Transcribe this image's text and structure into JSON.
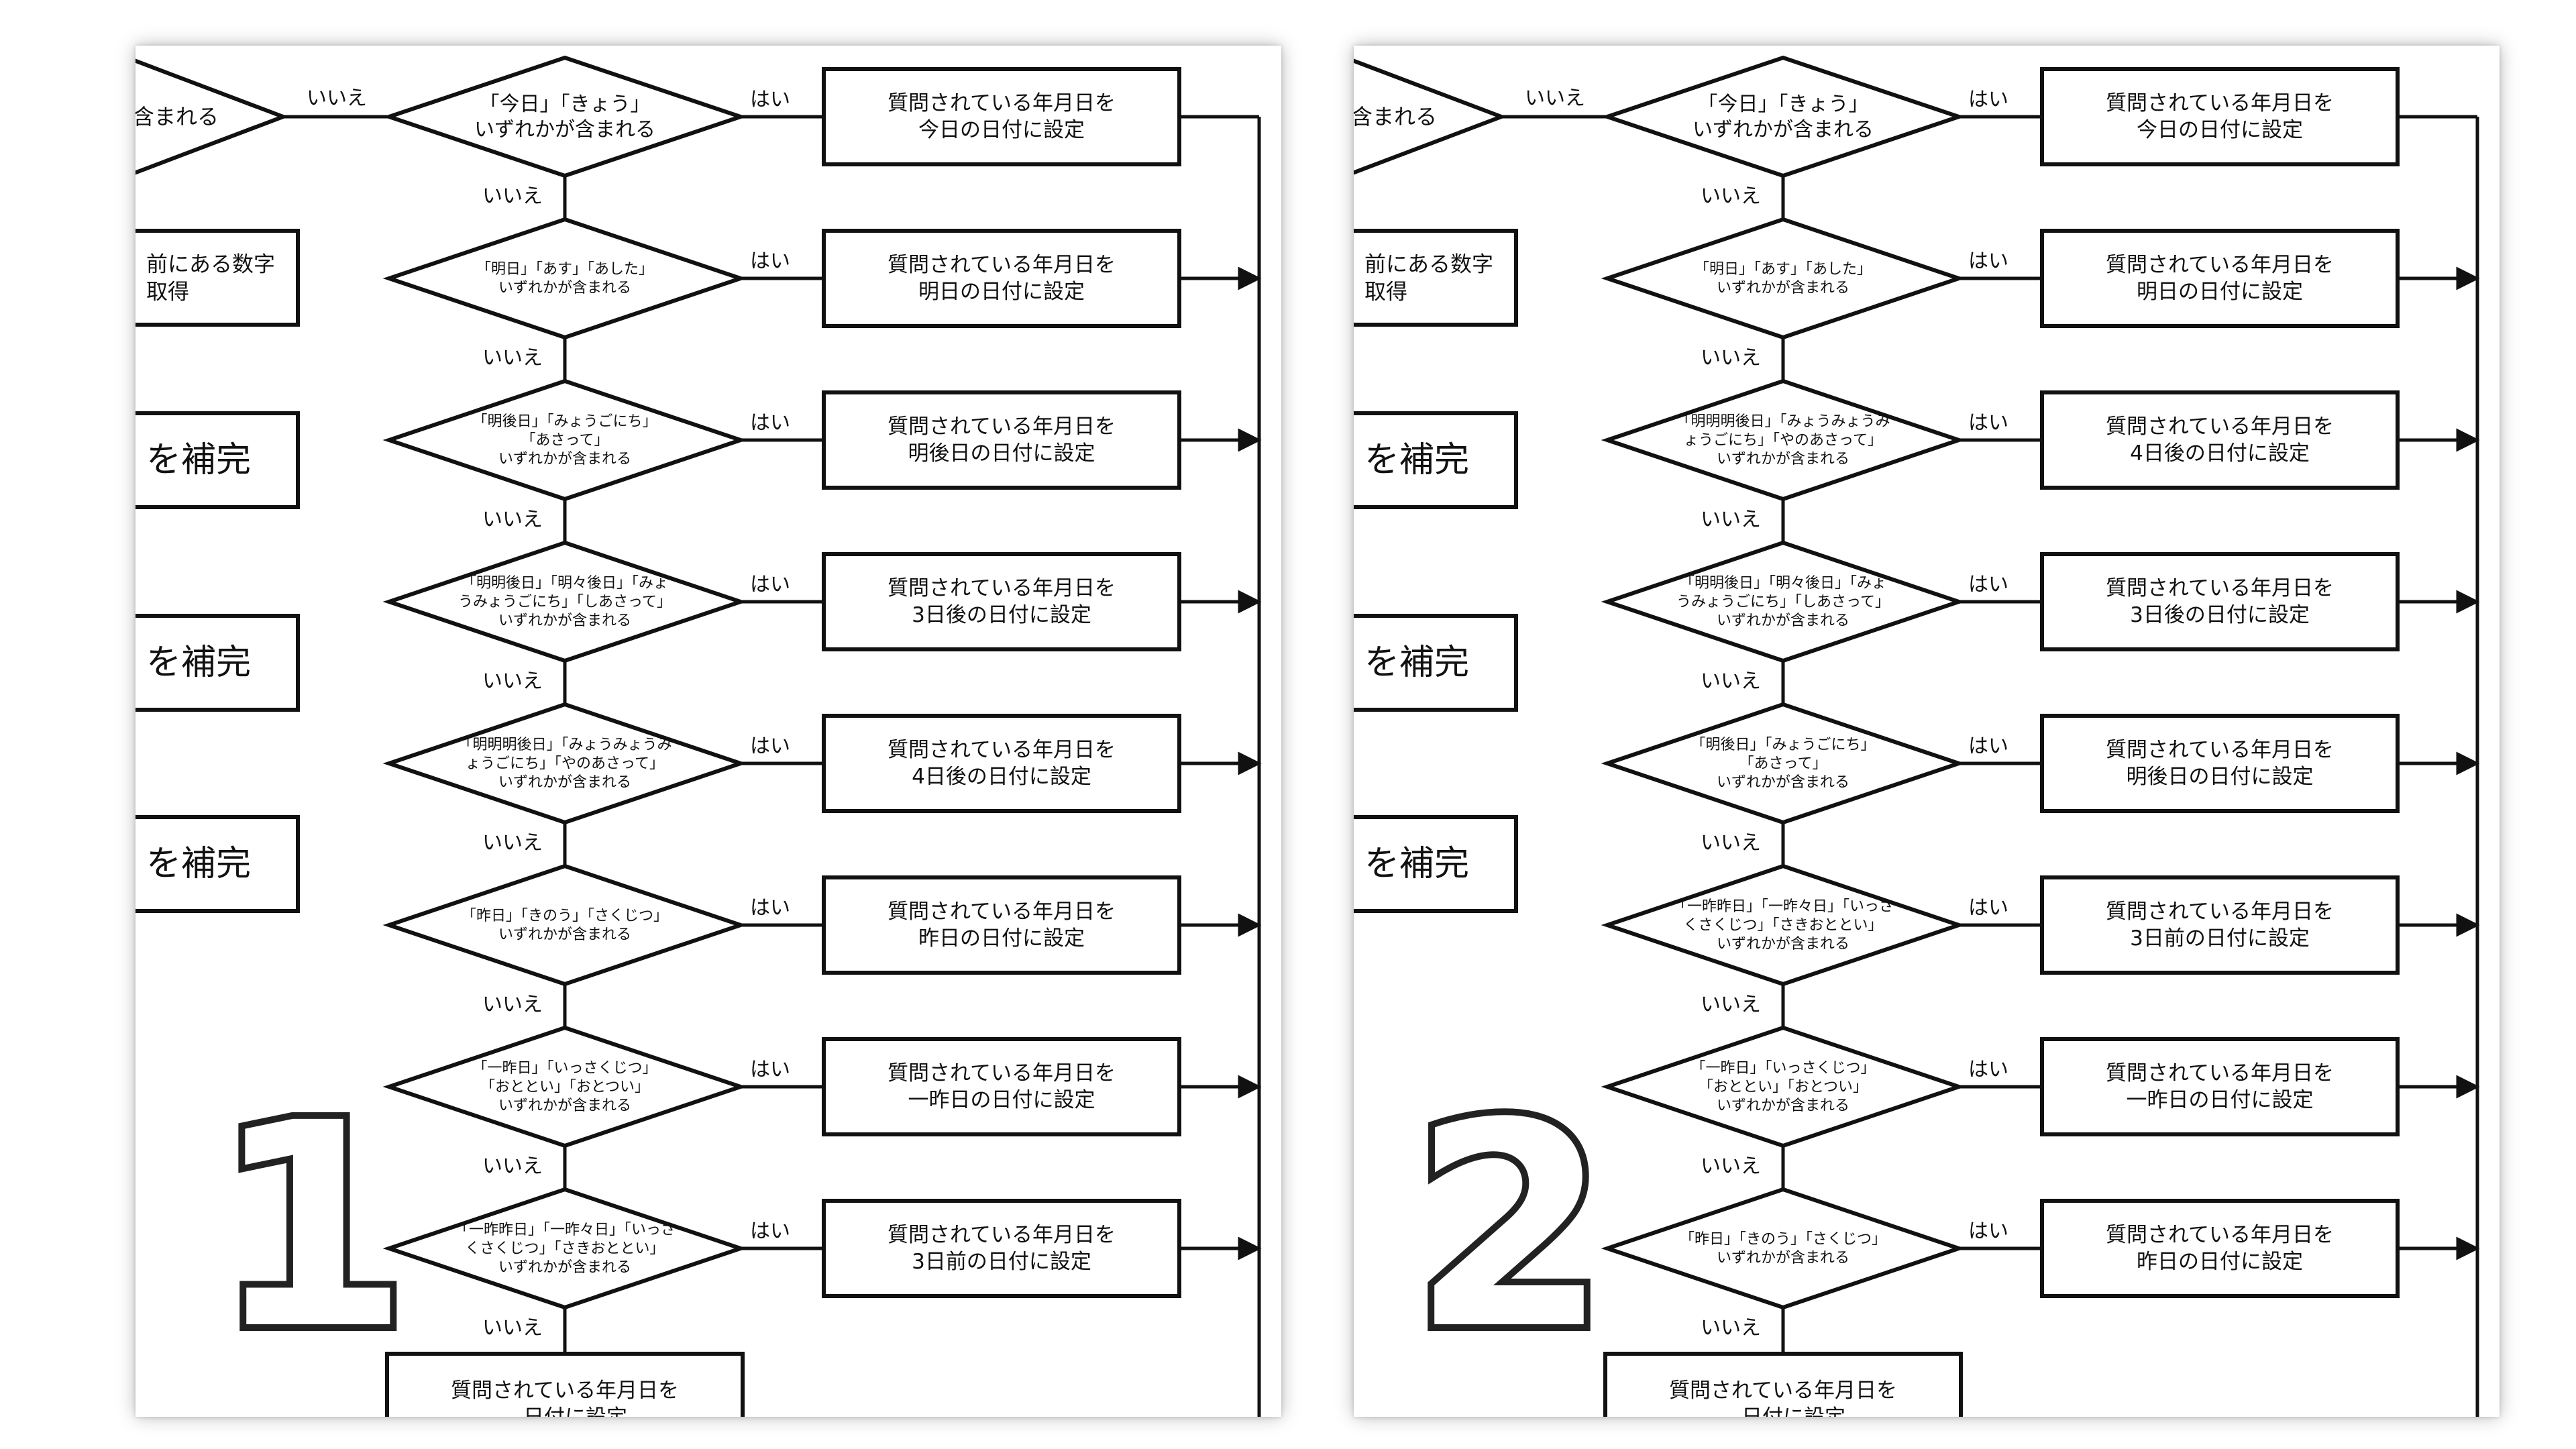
{
  "panels": [
    {
      "number": "1",
      "left_partial": [
        {
          "lines": [
            "含まれる"
          ]
        },
        {
          "lines": [
            "前にある数字",
            "取得"
          ]
        },
        {
          "lines": [
            "を補完"
          ]
        },
        {
          "lines": [
            "を補完"
          ]
        },
        {
          "lines": [
            "を補完"
          ]
        }
      ],
      "rows": [
        {
          "cond": [
            "「今日」「きょう」",
            "いずれかが含まれる"
          ],
          "action": [
            "質問されている年月日を",
            "今日の日付に設定"
          ]
        },
        {
          "cond": [
            "「明日」「あす」「あした」",
            "いずれかが含まれる"
          ],
          "action": [
            "質問されている年月日を",
            "明日の日付に設定"
          ]
        },
        {
          "cond": [
            "「明後日」「みょうごにち」",
            "「あさって」",
            "いずれかが含まれる"
          ],
          "action": [
            "質問されている年月日を",
            "明後日の日付に設定"
          ]
        },
        {
          "cond": [
            "「明明後日」「明々後日」「みょ",
            "うみょうごにち」「しあさって」",
            "いずれかが含まれる"
          ],
          "action": [
            "質問されている年月日を",
            "3日後の日付に設定"
          ]
        },
        {
          "cond": [
            "「明明明後日」「みょうみょうみ",
            "ょうごにち」「やのあさって」",
            "いずれかが含まれる"
          ],
          "action": [
            "質問されている年月日を",
            "4日後の日付に設定"
          ]
        },
        {
          "cond": [
            "「昨日」「きのう」「さくじつ」",
            "いずれかが含まれる"
          ],
          "action": [
            "質問されている年月日を",
            "昨日の日付に設定"
          ]
        },
        {
          "cond": [
            "「一昨日」「いっさくじつ」",
            "「おととい」「おとつい」",
            "いずれかが含まれる"
          ],
          "action": [
            "質問されている年月日を",
            "一昨日の日付に設定"
          ]
        },
        {
          "cond": [
            "「一昨昨日」「一昨々日」「いっさ",
            "くさくじつ」「さきおととい」",
            "いずれかが含まれる"
          ],
          "action": [
            "質問されている年月日を",
            "3日前の日付に設定"
          ]
        }
      ],
      "bottom_box": [
        "質問されている年月日を",
        "…日付に設定"
      ]
    },
    {
      "number": "2",
      "left_partial": [
        {
          "lines": [
            "含まれる"
          ]
        },
        {
          "lines": [
            "前にある数字",
            "取得"
          ]
        },
        {
          "lines": [
            "を補完"
          ]
        },
        {
          "lines": [
            "を補完"
          ]
        },
        {
          "lines": [
            "を補完"
          ]
        }
      ],
      "rows": [
        {
          "cond": [
            "「今日」「きょう」",
            "いずれかが含まれる"
          ],
          "action": [
            "質問されている年月日を",
            "今日の日付に設定"
          ]
        },
        {
          "cond": [
            "「明日」「あす」「あした」",
            "いずれかが含まれる"
          ],
          "action": [
            "質問されている年月日を",
            "明日の日付に設定"
          ]
        },
        {
          "cond": [
            "「明明明後日」「みょうみょうみ",
            "ょうごにち」「やのあさって」",
            "いずれかが含まれる"
          ],
          "action": [
            "質問されている年月日を",
            "4日後の日付に設定"
          ]
        },
        {
          "cond": [
            "「明明後日」「明々後日」「みょ",
            "うみょうごにち」「しあさって」",
            "いずれかが含まれる"
          ],
          "action": [
            "質問されている年月日を",
            "3日後の日付に設定"
          ]
        },
        {
          "cond": [
            "「明後日」「みょうごにち」",
            "「あさって」",
            "いずれかが含まれる"
          ],
          "action": [
            "質問されている年月日を",
            "明後日の日付に設定"
          ]
        },
        {
          "cond": [
            "「一昨昨日」「一昨々日」「いっさ",
            "くさくじつ」「さきおととい」",
            "いずれかが含まれる"
          ],
          "action": [
            "質問されている年月日を",
            "3日前の日付に設定"
          ]
        },
        {
          "cond": [
            "「一昨日」「いっさくじつ」",
            "「おととい」「おとつい」",
            "いずれかが含まれる"
          ],
          "action": [
            "質問されている年月日を",
            "一昨日の日付に設定"
          ]
        },
        {
          "cond": [
            "「昨日」「きのう」「さくじつ」",
            "いずれかが含まれる"
          ],
          "action": [
            "質問されている年月日を",
            "昨日の日付に設定"
          ]
        }
      ],
      "bottom_box": [
        "質問されている年月日を",
        "…日付に設定"
      ]
    }
  ],
  "labels": {
    "yes": "はい",
    "no": "いいえ"
  }
}
